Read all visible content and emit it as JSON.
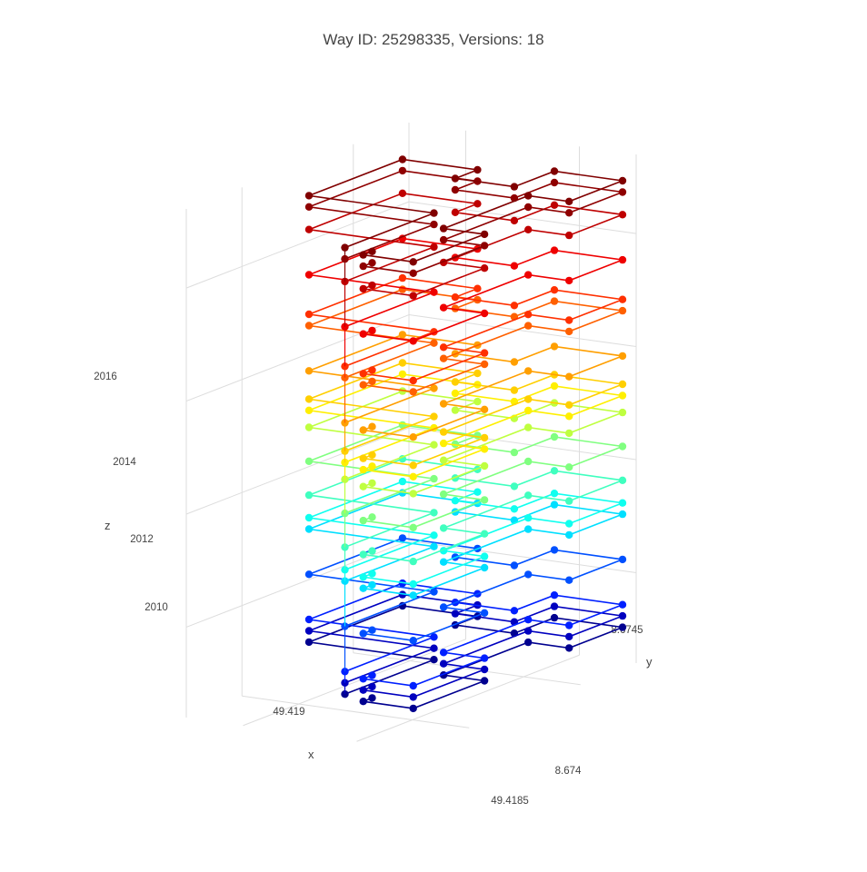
{
  "chart_data": {
    "type": "line3d",
    "title": "Way ID: 25298335, Versions: 18",
    "axes": {
      "x": {
        "label": "x",
        "ticks": [
          "49.419",
          "49.4185"
        ]
      },
      "y": {
        "label": "y",
        "ticks": [
          "8.674",
          "8.6745"
        ]
      },
      "z": {
        "label": "z",
        "ticks": [
          "2010",
          "2012",
          "2014",
          "2016"
        ]
      }
    },
    "series": [
      {
        "version": 1,
        "z": 2009.0,
        "color": "#00008F"
      },
      {
        "version": 2,
        "z": 2009.2,
        "color": "#0000BF"
      },
      {
        "version": 3,
        "z": 2009.4,
        "color": "#0020FF"
      },
      {
        "version": 4,
        "z": 2010.2,
        "color": "#0050FF"
      },
      {
        "version": 5,
        "z": 2011.0,
        "color": "#00DFFF"
      },
      {
        "version": 6,
        "z": 2011.2,
        "color": "#10FFEF"
      },
      {
        "version": 7,
        "z": 2011.6,
        "color": "#40FFBF"
      },
      {
        "version": 8,
        "z": 2012.2,
        "color": "#80FF80"
      },
      {
        "version": 9,
        "z": 2012.8,
        "color": "#BFFF40"
      },
      {
        "version": 10,
        "z": 2013.1,
        "color": "#FFEF00"
      },
      {
        "version": 11,
        "z": 2013.3,
        "color": "#FFCF00"
      },
      {
        "version": 12,
        "z": 2013.8,
        "color": "#FF9F00"
      },
      {
        "version": 13,
        "z": 2014.6,
        "color": "#FF6000"
      },
      {
        "version": 14,
        "z": 2014.8,
        "color": "#FF3000"
      },
      {
        "version": 15,
        "z": 2015.5,
        "color": "#EF0000"
      },
      {
        "version": 16,
        "z": 2016.3,
        "color": "#BF0000"
      },
      {
        "version": 17,
        "z": 2016.7,
        "color": "#8F0000"
      },
      {
        "version": 18,
        "z": 2016.9,
        "color": "#800000"
      }
    ]
  }
}
